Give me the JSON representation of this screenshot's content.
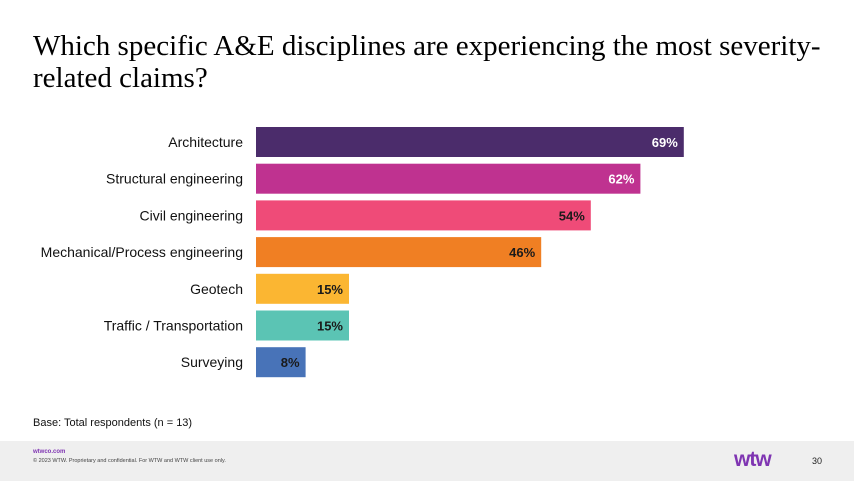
{
  "title": "Which specific A&E disciplines are experiencing the most severity-related claims?",
  "chart_data": {
    "type": "bar",
    "orientation": "horizontal",
    "title": "Which specific A&E disciplines are experiencing the most severity-related claims?",
    "categories": [
      "Architecture",
      "Structural engineering",
      "Civil engineering",
      "Mechanical/Process engineering",
      "Geotech",
      "Traffic / Transportation",
      "Surveying"
    ],
    "values": [
      69,
      62,
      54,
      46,
      15,
      15,
      8
    ],
    "value_labels": [
      "69%",
      "62%",
      "54%",
      "46%",
      "15%",
      "15%",
      "8%"
    ],
    "colors": [
      "#4b2c6b",
      "#bf3290",
      "#ef4b78",
      "#f07f23",
      "#fbb632",
      "#5bc4b4",
      "#4873b8"
    ],
    "label_colors": [
      "#ffffff",
      "#ffffff",
      "#1a1a1a",
      "#1a1a1a",
      "#1a1a1a",
      "#1a1a1a",
      "#1a1a1a"
    ],
    "xlim": [
      0,
      100
    ],
    "unit": "%",
    "grid": false,
    "legend": "none",
    "xlabel": "",
    "ylabel": ""
  },
  "base_note": "Base: Total respondents (n = 13)",
  "footer": {
    "url": "wtwco.com",
    "copyright": "© 2023 WTW. Proprietary and confidential.  For WTW and WTW client use only.",
    "logo_text": "wtw",
    "page_number": "30"
  }
}
